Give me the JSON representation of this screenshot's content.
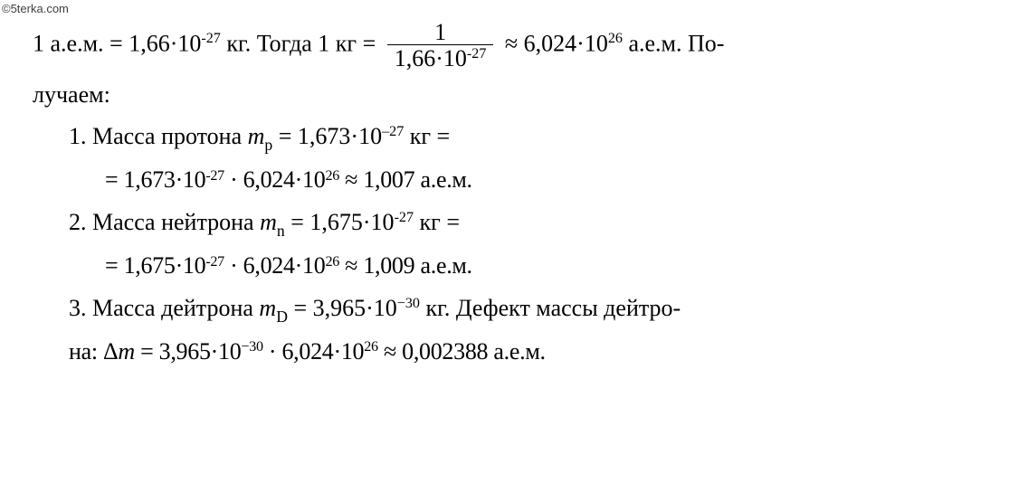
{
  "watermark": "©5terka.com",
  "line1a": "1 а.е.м.  = 1,66·10",
  "line1a_sup": "-27",
  "line1b": " кг. Тогда 1 кг = ",
  "frac_num": "1",
  "frac_den_a": "1,66·10",
  "frac_den_sup": "-27",
  "line1c": " ≈ 6,024·10",
  "line1c_sup": "26",
  "line1d": " а.е.м.  По-",
  "line2": "лучаем:",
  "p1a": "1. Масса протона ",
  "p1_m": "m",
  "p1_sub": "p",
  "p1b": " = 1,673·10",
  "p1_sup": "‒27",
  "p1c": " кг =",
  "p1d_a": "= 1,673·10",
  "p1d_sup1": "-27",
  "p1d_b": " · 6,024·10",
  "p1d_sup2": "26",
  "p1d_c": " ≈ 1,007  а.е.м.",
  "p2a": "2. Масса нейтрона ",
  "p2_m": "m",
  "p2_sub": "n",
  "p2b": " = 1,675·10",
  "p2_sup": "-27",
  "p2c": " кг =",
  "p2d_a": "= 1,675·10",
  "p2d_sup1": "-27",
  "p2d_b": " · 6,024·10",
  "p2d_sup2": "26",
  "p2d_c": " ≈ 1,009  а.е.м.",
  "p3a": "3. Масса дейтрона  ",
  "p3_m": "m",
  "p3_sub": "D",
  "p3b": " = 3,965·10",
  "p3_sup": "−30",
  "p3c": "  кг. Дефект массы дейтро-",
  "p3d_a": "на:   Δ",
  "p3d_m": "m",
  "p3d_b": " = 3,965·10",
  "p3d_sup1": "−30",
  "p3d_c": " · 6,024·10",
  "p3d_sup2": "26",
  "p3d_d": " ≈ 0,002388  а.е.м."
}
